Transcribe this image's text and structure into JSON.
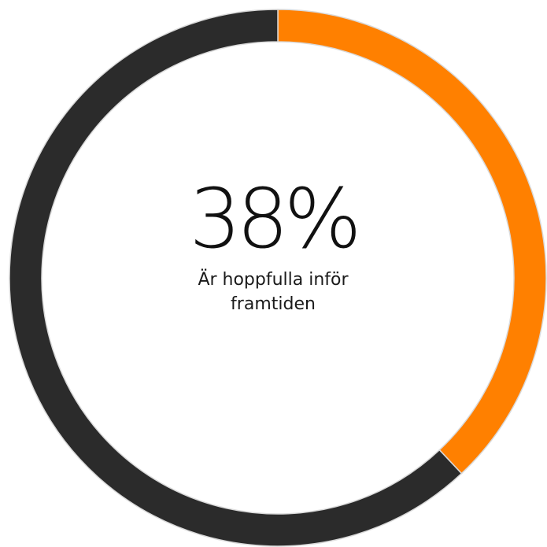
{
  "chart_data": {
    "type": "pie",
    "variant": "donut",
    "center_value": "38%",
    "center_caption": "Är hoppfulla inför framtiden",
    "slices": [
      {
        "value": 38,
        "color": "#ff8000"
      },
      {
        "value": 62,
        "color": "#2b2b2b"
      }
    ],
    "start_angle": "top",
    "direction": "clockwise",
    "legend": "none"
  }
}
